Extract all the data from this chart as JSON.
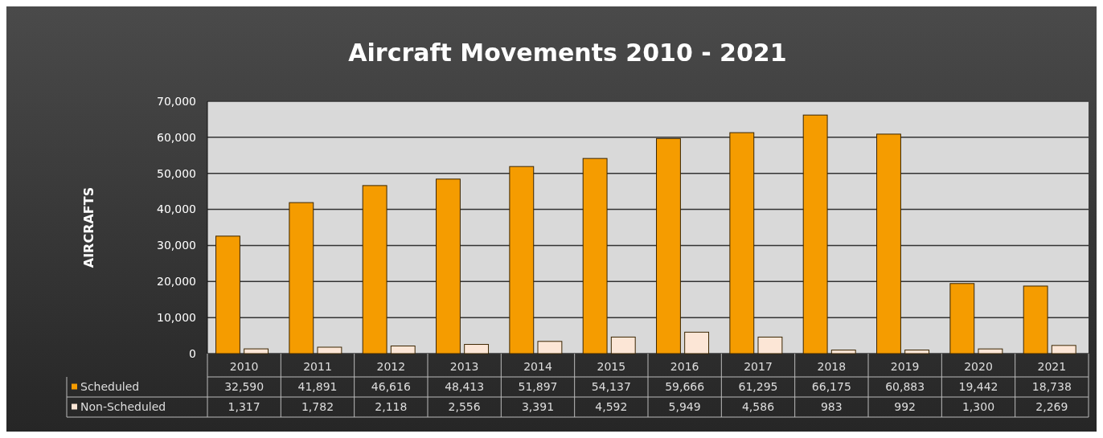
{
  "chart_data": {
    "type": "bar",
    "title": "Aircraft Movements 2010 - 2021",
    "ylabel": "AIRCRAFTS",
    "categories": [
      "2010",
      "2011",
      "2012",
      "2013",
      "2014",
      "2015",
      "2016",
      "2017",
      "2018",
      "2019",
      "2020",
      "2021"
    ],
    "series": [
      {
        "name": "Scheduled",
        "color": "#f59c00",
        "values": [
          32590,
          41891,
          46616,
          48413,
          51897,
          54137,
          59666,
          61295,
          66175,
          60883,
          19442,
          18738
        ],
        "value_labels": [
          "32,590",
          "41,891",
          "46,616",
          "48,413",
          "51,897",
          "54,137",
          "59,666",
          "61,295",
          "66,175",
          "60,883",
          "19,442",
          "18,738"
        ]
      },
      {
        "name": "Non-Scheduled",
        "color": "#fce6d6",
        "values": [
          1317,
          1782,
          2118,
          2556,
          3391,
          4592,
          5949,
          4586,
          983,
          992,
          1300,
          2269
        ],
        "value_labels": [
          "1,317",
          "1,782",
          "2,118",
          "2,556",
          "3,391",
          "4,592",
          "5,949",
          "4,586",
          "983",
          "992",
          "1,300",
          "2,269"
        ]
      }
    ],
    "ylim": [
      0,
      70000
    ],
    "yticks": [
      {
        "value": 0,
        "label": "0"
      },
      {
        "value": 10000,
        "label": "10,000"
      },
      {
        "value": 20000,
        "label": "20,000"
      },
      {
        "value": 30000,
        "label": "30,000"
      },
      {
        "value": 40000,
        "label": "40,000"
      },
      {
        "value": 50000,
        "label": "50,000"
      },
      {
        "value": 60000,
        "label": "60,000"
      },
      {
        "value": 70000,
        "label": "70,000"
      }
    ],
    "grid": "y",
    "legend": "bottom"
  }
}
